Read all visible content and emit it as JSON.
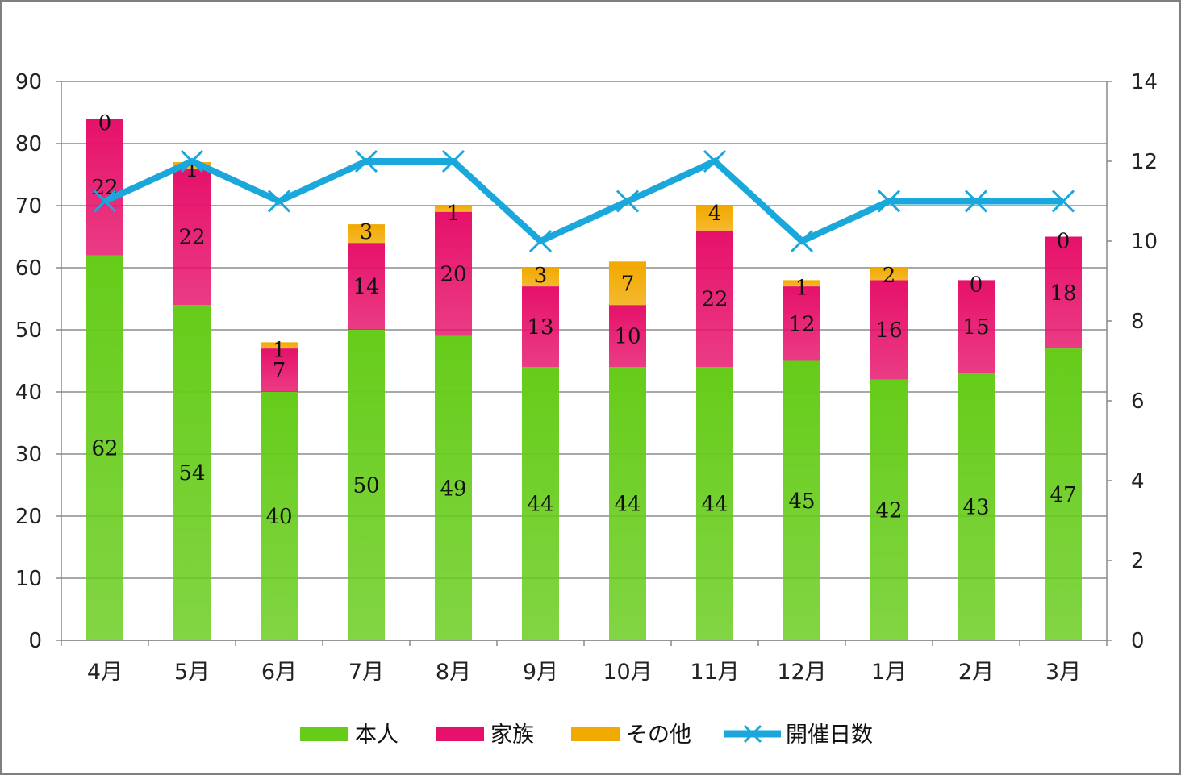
{
  "chart_data": {
    "type": "bar",
    "stacked": true,
    "categories": [
      "4月",
      "5月",
      "6月",
      "7月",
      "8月",
      "9月",
      "10月",
      "11月",
      "12月",
      "1月",
      "2月",
      "3月"
    ],
    "series": [
      {
        "name": "本人",
        "type": "bar",
        "axis": "left",
        "color": "#66cc1a",
        "values": [
          62,
          54,
          40,
          50,
          49,
          44,
          44,
          44,
          45,
          42,
          43,
          47
        ]
      },
      {
        "name": "家族",
        "type": "bar",
        "axis": "left",
        "color": "#e6116a",
        "values": [
          22,
          22,
          7,
          14,
          20,
          13,
          10,
          22,
          12,
          16,
          15,
          18
        ]
      },
      {
        "name": "その他",
        "type": "bar",
        "axis": "left",
        "color": "#f2a900",
        "values": [
          0,
          1,
          1,
          3,
          1,
          3,
          7,
          4,
          1,
          2,
          0,
          0
        ]
      },
      {
        "name": "開催日数",
        "type": "line",
        "axis": "right",
        "color": "#1aa7db",
        "marker": "x",
        "values": [
          11,
          12,
          11,
          12,
          12,
          10,
          11,
          12,
          10,
          11,
          11,
          11
        ]
      }
    ],
    "y_left": {
      "ylim": [
        0,
        90
      ],
      "ticks": [
        "0",
        "10",
        "20",
        "30",
        "40",
        "50",
        "60",
        "70",
        "80",
        "90"
      ]
    },
    "y_right": {
      "ylim": [
        0,
        14
      ],
      "ticks": [
        "0",
        "2",
        "4",
        "6",
        "8",
        "10",
        "12",
        "14"
      ]
    },
    "grid": true,
    "legend_position": "bottom"
  }
}
